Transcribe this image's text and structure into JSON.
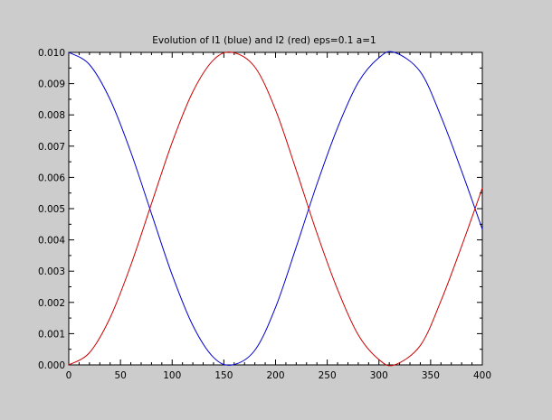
{
  "chart_data": {
    "type": "line",
    "title": "Evolution of I1 (blue) and I2 (red)  eps=0.1  a=1",
    "xlabel": "",
    "ylabel": "",
    "xlim": [
      0,
      400
    ],
    "ylim": [
      0,
      0.01
    ],
    "x_ticks": [
      "0",
      "50",
      "100",
      "150",
      "200",
      "250",
      "300",
      "350",
      "400"
    ],
    "y_ticks": [
      "0.000",
      "0.001",
      "0.002",
      "0.003",
      "0.004",
      "0.005",
      "0.006",
      "0.007",
      "0.008",
      "0.009",
      "0.010"
    ],
    "grid": false,
    "legend": "none",
    "colors": {
      "background": "#cccccc",
      "plot_area": "#ffffff",
      "axes": "#000000"
    },
    "series": [
      {
        "color": "#0000cc",
        "x": [
          0,
          20,
          40,
          60,
          80,
          100,
          120,
          140,
          158,
          180,
          200,
          220,
          240,
          260,
          280,
          300,
          315,
          340,
          360,
          380,
          400
        ],
        "y": [
          0.01,
          0.00961,
          0.00849,
          0.00681,
          0.00484,
          0.00288,
          0.00126,
          0.00024,
          0.0,
          0.00047,
          0.00184,
          0.00377,
          0.00578,
          0.00759,
          0.00904,
          0.00983,
          0.01,
          0.00938,
          0.00795,
          0.0062,
          0.00434
        ]
      },
      {
        "color": "#cc0000",
        "x": [
          0,
          20,
          40,
          60,
          80,
          100,
          120,
          140,
          158,
          180,
          200,
          220,
          240,
          260,
          280,
          300,
          315,
          340,
          360,
          380,
          400
        ],
        "y": [
          0.0,
          0.00039,
          0.00151,
          0.00319,
          0.00516,
          0.00712,
          0.00874,
          0.00976,
          0.01,
          0.00953,
          0.00816,
          0.00623,
          0.00422,
          0.00241,
          0.00096,
          0.00017,
          0.0,
          0.00062,
          0.00205,
          0.0038,
          0.00566
        ]
      }
    ]
  }
}
